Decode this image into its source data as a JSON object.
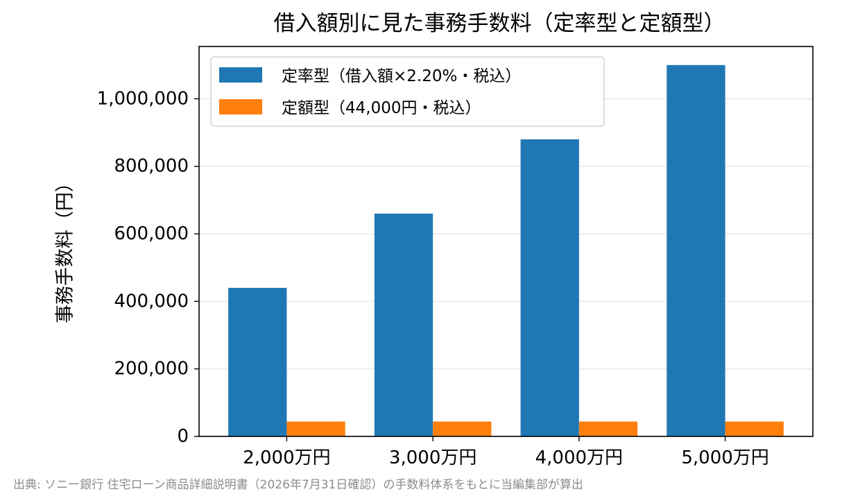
{
  "chart_data": {
    "type": "bar",
    "title": "借入額別に見た事務手数料（定率型と定額型）",
    "xlabel": "",
    "ylabel": "事務手数料（円）",
    "categories": [
      "2,000万円",
      "3,000万円",
      "4,000万円",
      "5,000万円"
    ],
    "series": [
      {
        "name": "定率型（借入額×2.20%・税込）",
        "color": "#1f77b4",
        "values": [
          440000,
          660000,
          880000,
          1100000
        ]
      },
      {
        "name": "定額型（44,000円・税込）",
        "color": "#ff7f0e",
        "values": [
          44000,
          44000,
          44000,
          44000
        ]
      }
    ],
    "ylim": [
      0,
      1155000
    ],
    "yticks": [
      0,
      200000,
      400000,
      600000,
      800000,
      1000000
    ],
    "ytick_labels": [
      "0",
      "200,000",
      "400,000",
      "600,000",
      "800,000",
      "1,000,000"
    ],
    "grid": "horizontal",
    "legend_position": "top-left"
  },
  "source_note": "出典: ソニー銀行 住宅ローン商品詳細説明書（2026年7月31日確認）の手数料体系をもとに当編集部が算出"
}
